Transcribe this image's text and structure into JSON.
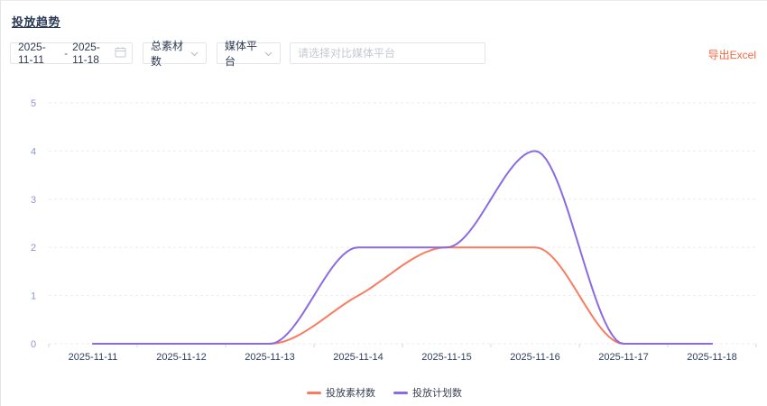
{
  "page": {
    "title": "投放趋势"
  },
  "controls": {
    "date_range": {
      "start": "2025-11-11",
      "separator": "-",
      "end": "2025-11-18",
      "calendar_icon": "calendar-icon"
    },
    "metric_select": {
      "value": "总素材数",
      "chevron_icon": "chevron-down-icon"
    },
    "platform_select": {
      "value": "媒体平台",
      "chevron_icon": "chevron-down-icon"
    },
    "compare_input": {
      "placeholder": "请选择对比媒体平台",
      "value": ""
    },
    "export_label": "导出Excel"
  },
  "chart_data": {
    "type": "line",
    "x": [
      "2025-11-11",
      "2025-11-12",
      "2025-11-13",
      "2025-11-14",
      "2025-11-15",
      "2025-11-16",
      "2025-11-17",
      "2025-11-18"
    ],
    "series": [
      {
        "name": "投放素材数",
        "color": "#f87c60",
        "values": [
          0,
          0,
          0,
          1,
          2,
          2,
          0,
          0
        ]
      },
      {
        "name": "投放计划数",
        "color": "#8a6be2",
        "values": [
          0,
          0,
          0,
          2,
          2,
          4,
          0,
          0
        ]
      }
    ],
    "ylim": [
      0,
      5
    ],
    "y_ticks": [
      0,
      1,
      2,
      3,
      4,
      5
    ],
    "smooth": true,
    "grid": "horizontal-dashed",
    "legend_position": "bottom",
    "xlabel": "",
    "ylabel": ""
  },
  "colors": {
    "grid_line": "#ebebf2",
    "axis_tick": "#d4d7de",
    "y_label": "#8c95d8",
    "x_label": "#2e3e5e",
    "export_accent": "#f4683f"
  }
}
